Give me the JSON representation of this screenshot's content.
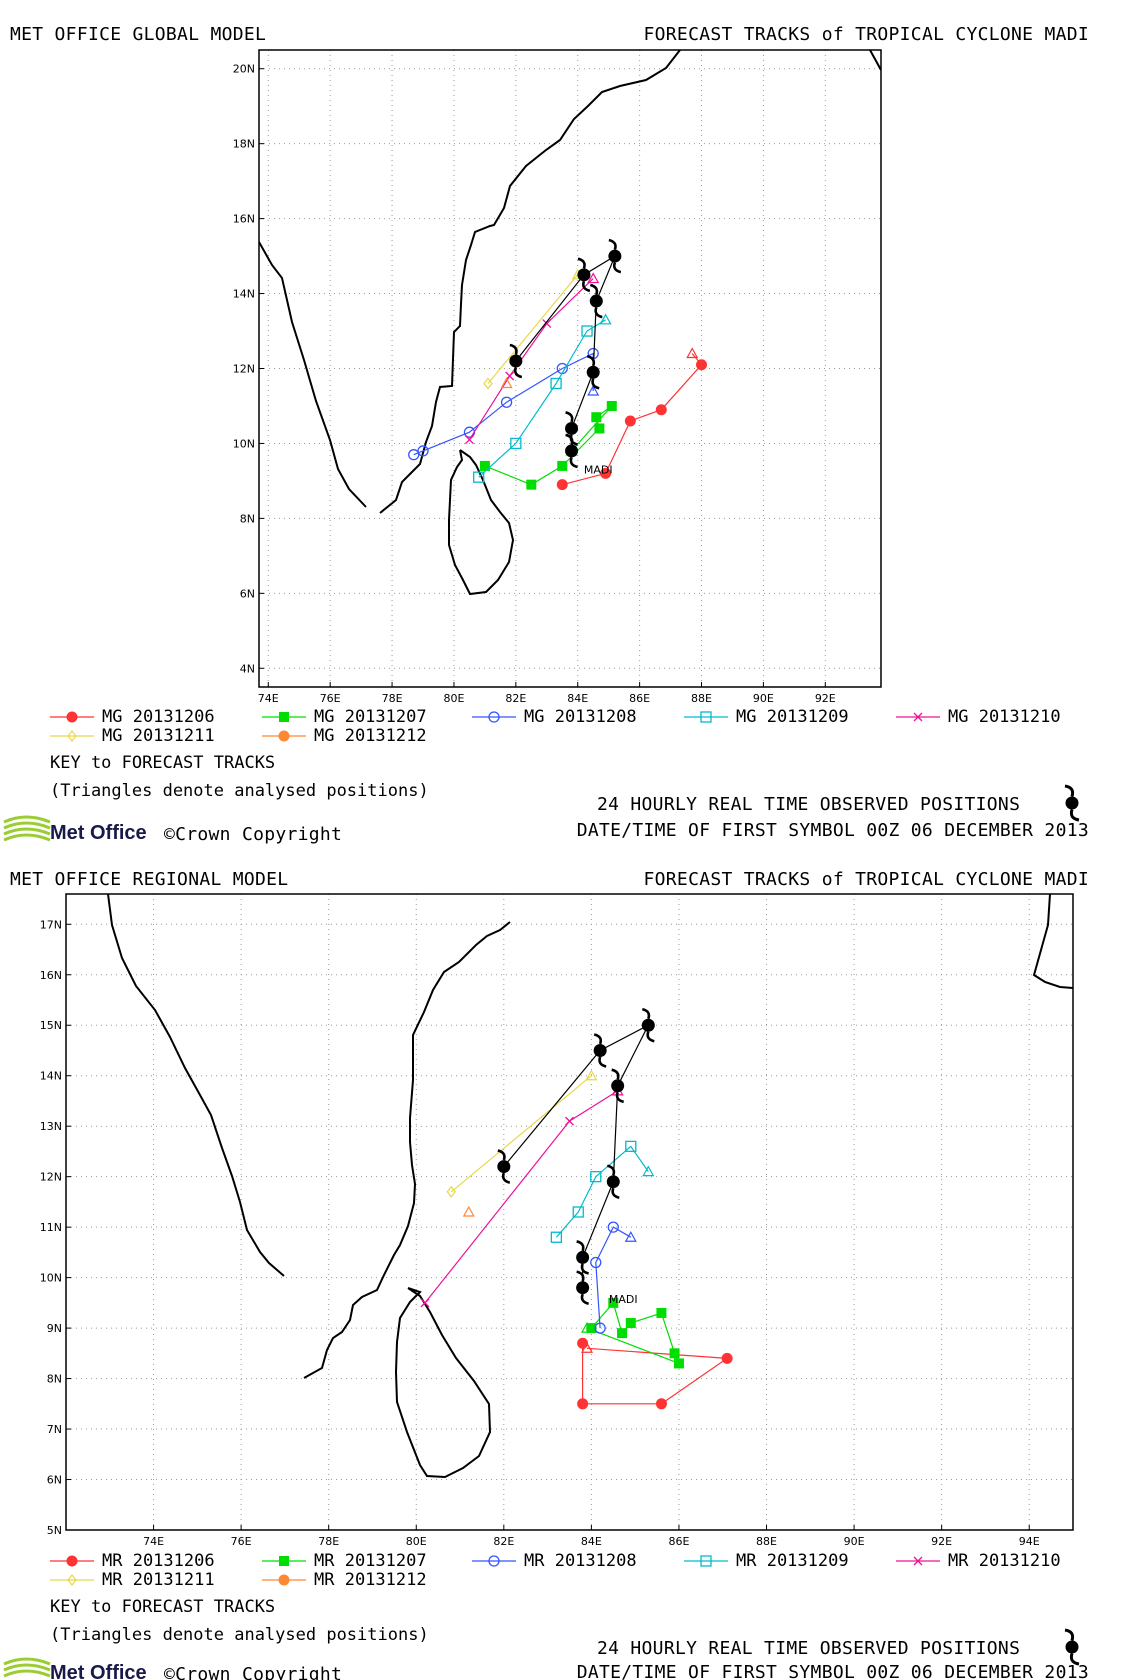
{
  "panels": [
    {
      "model_title": "MET OFFICE GLOBAL MODEL",
      "chart_title": "FORECAST TRACKS of TROPICAL CYCLONE MADI",
      "storm_label": "MADI",
      "key_title": "KEY to FORECAST TRACKS",
      "key_note": "(Triangles denote analysed positions)",
      "observed_label": "24 HOURLY REAL TIME OBSERVED POSITIONS",
      "first_symbol_label": "DATE/TIME OF FIRST SYMBOL 00Z 06 DECEMBER 2013",
      "logo_text": "Met Office",
      "copyright_text": "©Crown Copyright",
      "legend": [
        {
          "label": "MG 20131206",
          "color": "#ff3333",
          "marker": "circle-filled"
        },
        {
          "label": "MG 20131207",
          "color": "#00dd00",
          "marker": "square-filled"
        },
        {
          "label": "MG 20131208",
          "color": "#3355ff",
          "marker": "circle-open"
        },
        {
          "label": "MG 20131209",
          "color": "#00bbcc",
          "marker": "square-open"
        },
        {
          "label": "MG 20131210",
          "color": "#ee1199",
          "marker": "x"
        },
        {
          "label": "MG 20131211",
          "color": "#e8d84a",
          "marker": "diamond-open"
        },
        {
          "label": "MG 20131212",
          "color": "#ff8833",
          "marker": "circle-filled"
        }
      ]
    },
    {
      "model_title": "MET OFFICE REGIONAL MODEL",
      "chart_title": "FORECAST TRACKS of TROPICAL CYCLONE MADI",
      "storm_label": "MADI",
      "key_title": "KEY to FORECAST TRACKS",
      "key_note": "(Triangles denote analysed positions)",
      "observed_label": "24 HOURLY REAL TIME OBSERVED POSITIONS",
      "first_symbol_label": "DATE/TIME OF FIRST SYMBOL 00Z 06 DECEMBER 2013",
      "logo_text": "Met Office",
      "copyright_text": "©Crown Copyright",
      "legend": [
        {
          "label": "MR 20131206",
          "color": "#ff3333",
          "marker": "circle-filled"
        },
        {
          "label": "MR 20131207",
          "color": "#00dd00",
          "marker": "square-filled"
        },
        {
          "label": "MR 20131208",
          "color": "#3355ff",
          "marker": "circle-open"
        },
        {
          "label": "MR 20131209",
          "color": "#00bbcc",
          "marker": "square-open"
        },
        {
          "label": "MR 20131210",
          "color": "#ee1199",
          "marker": "x"
        },
        {
          "label": "MR 20131211",
          "color": "#e8d84a",
          "marker": "diamond-open"
        },
        {
          "label": "MR 20131212",
          "color": "#ff8833",
          "marker": "circle-filled"
        }
      ]
    }
  ],
  "chart_data": [
    {
      "type": "scatter",
      "xlim": [
        73.7,
        93.8
      ],
      "ylim": [
        3.5,
        20.5
      ],
      "x_ticks": [
        "74E",
        "76E",
        "78E",
        "80E",
        "82E",
        "84E",
        "86E",
        "88E",
        "90E",
        "92E"
      ],
      "x_tick_values": [
        74,
        76,
        78,
        80,
        82,
        84,
        86,
        88,
        90,
        92
      ],
      "y_ticks": [
        "4N",
        "6N",
        "8N",
        "10N",
        "12N",
        "14N",
        "16N",
        "18N",
        "20N"
      ],
      "y_tick_values": [
        4,
        6,
        8,
        10,
        12,
        14,
        16,
        18,
        20
      ],
      "grid": true,
      "observed": [
        [
          83.8,
          9.8
        ],
        [
          83.8,
          10.4
        ],
        [
          84.5,
          11.9
        ],
        [
          84.6,
          13.8
        ],
        [
          85.2,
          15.0
        ],
        [
          84.2,
          14.5
        ],
        [
          82.0,
          12.2
        ]
      ],
      "storm_label_position": [
        84.2,
        9.2
      ],
      "series": [
        {
          "name": "MG 20131206",
          "analysed": [
            87.7,
            12.4
          ],
          "points": [
            [
              88.0,
              12.1
            ],
            [
              86.7,
              10.9
            ],
            [
              85.7,
              10.6
            ],
            [
              84.9,
              9.2
            ],
            [
              83.5,
              8.9
            ]
          ]
        },
        {
          "name": "MG 20131207",
          "analysed": [
            83.8,
            9.8
          ],
          "points": [
            [
              85.1,
              11.0
            ],
            [
              84.6,
              10.7
            ],
            [
              84.7,
              10.4
            ],
            [
              83.5,
              9.4
            ],
            [
              82.5,
              8.9
            ],
            [
              81.0,
              9.4
            ]
          ]
        },
        {
          "name": "MG 20131208",
          "analysed": [
            84.5,
            11.4
          ],
          "points": [
            [
              84.5,
              12.4
            ],
            [
              83.5,
              12.0
            ],
            [
              81.7,
              11.1
            ],
            [
              80.5,
              10.3
            ],
            [
              79.0,
              9.8
            ],
            [
              78.7,
              9.7
            ]
          ]
        },
        {
          "name": "MG 20131209",
          "analysed": [
            84.9,
            13.3
          ],
          "points": [
            [
              84.3,
              13.0
            ],
            [
              83.3,
              11.6
            ],
            [
              82.0,
              10.0
            ],
            [
              80.8,
              9.1
            ]
          ]
        },
        {
          "name": "MG 20131210",
          "analysed": [
            84.5,
            14.4
          ],
          "points": [
            [
              83.0,
              13.2
            ],
            [
              81.8,
              11.8
            ],
            [
              80.5,
              10.1
            ]
          ]
        },
        {
          "name": "MG 20131211",
          "analysed": [
            84.0,
            14.5
          ],
          "points": [
            [
              81.1,
              11.6
            ]
          ]
        },
        {
          "name": "MG 20131212",
          "analysed": [
            81.7,
            11.6
          ],
          "points": []
        }
      ]
    },
    {
      "type": "scatter",
      "xlim": [
        72.0,
        95.0
      ],
      "ylim": [
        5.0,
        17.6
      ],
      "x_ticks": [
        "74E",
        "76E",
        "78E",
        "80E",
        "82E",
        "84E",
        "86E",
        "88E",
        "90E",
        "92E",
        "94E"
      ],
      "x_tick_values": [
        74,
        76,
        78,
        80,
        82,
        84,
        86,
        88,
        90,
        92,
        94
      ],
      "y_ticks": [
        "5N",
        "6N",
        "7N",
        "8N",
        "9N",
        "10N",
        "11N",
        "12N",
        "13N",
        "14N",
        "15N",
        "16N",
        "17N"
      ],
      "y_tick_values": [
        5,
        6,
        7,
        8,
        9,
        10,
        11,
        12,
        13,
        14,
        15,
        16,
        17
      ],
      "grid": true,
      "observed": [
        [
          83.8,
          9.8
        ],
        [
          83.8,
          10.4
        ],
        [
          84.5,
          11.9
        ],
        [
          84.6,
          13.8
        ],
        [
          85.3,
          15.0
        ],
        [
          84.2,
          14.5
        ],
        [
          82.0,
          12.2
        ]
      ],
      "storm_label_position": [
        84.4,
        9.5
      ],
      "series": [
        {
          "name": "MR 20131206",
          "analysed": [
            83.9,
            8.6
          ],
          "points": [
            [
              87.1,
              8.4
            ],
            [
              85.6,
              7.5
            ],
            [
              83.8,
              7.5
            ],
            [
              83.8,
              8.7
            ]
          ]
        },
        {
          "name": "MR 20131207",
          "analysed": [
            83.9,
            9.0
          ],
          "points": [
            [
              86.0,
              8.3
            ],
            [
              85.9,
              8.5
            ],
            [
              85.6,
              9.3
            ],
            [
              84.9,
              9.1
            ],
            [
              84.7,
              8.9
            ],
            [
              84.5,
              9.5
            ],
            [
              84.0,
              9.0
            ]
          ]
        },
        {
          "name": "MR 20131208",
          "analysed": [
            84.9,
            10.8
          ],
          "points": [
            [
              84.5,
              11.0
            ],
            [
              84.1,
              10.3
            ],
            [
              84.2,
              9.0
            ]
          ]
        },
        {
          "name": "MR 20131209",
          "analysed": [
            85.3,
            12.1
          ],
          "points": [
            [
              84.9,
              12.6
            ],
            [
              84.1,
              12.0
            ],
            [
              83.7,
              11.3
            ],
            [
              83.2,
              10.8
            ]
          ]
        },
        {
          "name": "MR 20131210",
          "analysed": [
            84.6,
            13.7
          ],
          "points": [
            [
              83.5,
              13.1
            ],
            [
              80.2,
              9.5
            ]
          ]
        },
        {
          "name": "MR 20131211",
          "analysed": [
            84.0,
            14.0
          ],
          "points": [
            [
              80.8,
              11.7
            ]
          ]
        },
        {
          "name": "MR 20131212",
          "analysed": [
            81.2,
            11.3
          ],
          "points": []
        }
      ]
    }
  ]
}
